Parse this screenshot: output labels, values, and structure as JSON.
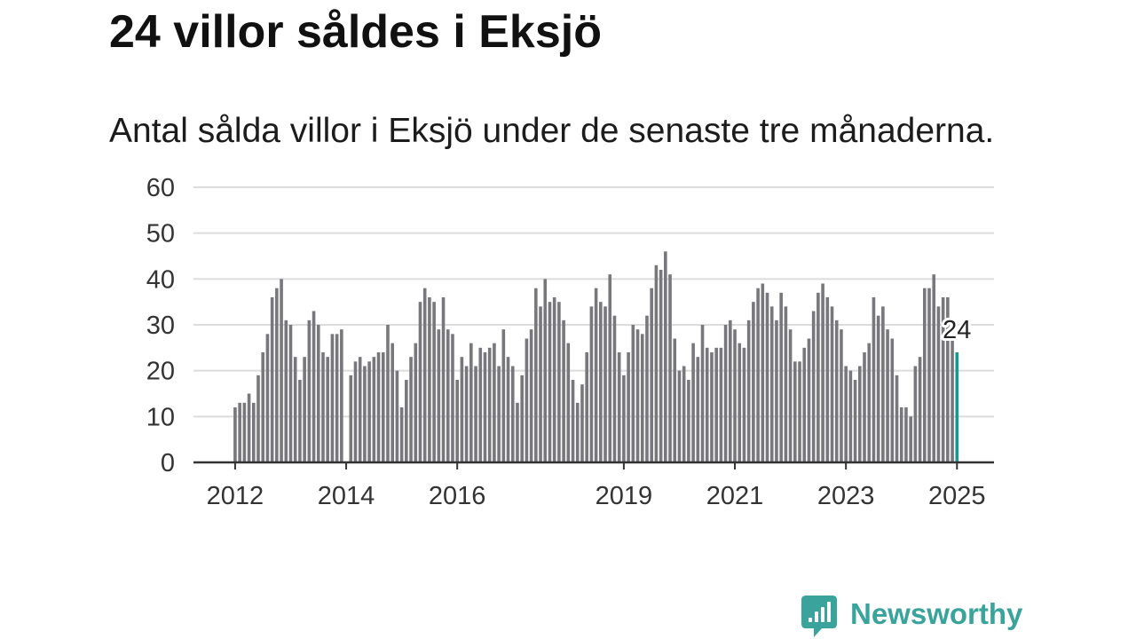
{
  "chart_data": {
    "type": "bar",
    "title": "24 villor såldes i Eksjö",
    "subtitle": "Antal sålda villor i Eksjö under de senaste tre månaderna.",
    "x": [
      "2012-01",
      "2012-02",
      "2012-03",
      "2012-04",
      "2012-05",
      "2012-06",
      "2012-07",
      "2012-08",
      "2012-09",
      "2012-10",
      "2012-11",
      "2012-12",
      "2013-01",
      "2013-02",
      "2013-03",
      "2013-04",
      "2013-05",
      "2013-06",
      "2013-07",
      "2013-08",
      "2013-09",
      "2013-10",
      "2013-11",
      "2013-12",
      "2014-01",
      "2014-02",
      "2014-03",
      "2014-04",
      "2014-05",
      "2014-06",
      "2014-07",
      "2014-08",
      "2014-09",
      "2014-10",
      "2014-11",
      "2014-12",
      "2015-01",
      "2015-02",
      "2015-03",
      "2015-04",
      "2015-05",
      "2015-06",
      "2015-07",
      "2015-08",
      "2015-09",
      "2015-10",
      "2015-11",
      "2015-12",
      "2016-01",
      "2016-02",
      "2016-03",
      "2016-04",
      "2016-05",
      "2016-06",
      "2016-07",
      "2016-08",
      "2016-09",
      "2016-10",
      "2016-11",
      "2016-12",
      "2017-01",
      "2017-02",
      "2017-03",
      "2017-04",
      "2017-05",
      "2017-06",
      "2017-07",
      "2017-08",
      "2017-09",
      "2017-10",
      "2017-11",
      "2017-12",
      "2018-01",
      "2018-02",
      "2018-03",
      "2018-04",
      "2018-05",
      "2018-06",
      "2018-07",
      "2018-08",
      "2018-09",
      "2018-10",
      "2018-11",
      "2018-12",
      "2019-01",
      "2019-02",
      "2019-03",
      "2019-04",
      "2019-05",
      "2019-06",
      "2019-07",
      "2019-08",
      "2019-09",
      "2019-10",
      "2019-11",
      "2019-12",
      "2020-01",
      "2020-02",
      "2020-03",
      "2020-04",
      "2020-05",
      "2020-06",
      "2020-07",
      "2020-08",
      "2020-09",
      "2020-10",
      "2020-11",
      "2020-12",
      "2021-01",
      "2021-02",
      "2021-03",
      "2021-04",
      "2021-05",
      "2021-06",
      "2021-07",
      "2021-08",
      "2021-09",
      "2021-10",
      "2021-11",
      "2021-12",
      "2022-01",
      "2022-02",
      "2022-03",
      "2022-04",
      "2022-05",
      "2022-06",
      "2022-07",
      "2022-08",
      "2022-09",
      "2022-10",
      "2022-11",
      "2022-12",
      "2023-01",
      "2023-02",
      "2023-03",
      "2023-04",
      "2023-05",
      "2023-06",
      "2023-07",
      "2023-08",
      "2023-09",
      "2023-10",
      "2023-11",
      "2023-12",
      "2024-01",
      "2024-02",
      "2024-03",
      "2024-04",
      "2024-05",
      "2024-06",
      "2024-07",
      "2024-08",
      "2024-09",
      "2024-10",
      "2024-11",
      "2024-12",
      "2025-01"
    ],
    "series": [
      {
        "values": [
          12,
          13,
          13,
          15,
          13,
          19,
          24,
          28,
          36,
          38,
          40,
          31,
          30,
          23,
          18,
          23,
          31,
          33,
          30,
          24,
          23,
          28,
          28,
          29,
          null,
          19,
          22,
          23,
          21,
          22,
          23,
          24,
          24,
          30,
          26,
          20,
          12,
          18,
          23,
          26,
          35,
          38,
          36,
          35,
          29,
          36,
          29,
          28,
          18,
          23,
          21,
          26,
          21,
          25,
          24,
          25,
          26,
          21,
          29,
          23,
          21,
          13,
          19,
          27,
          29,
          38,
          34,
          40,
          35,
          36,
          35,
          31,
          26,
          18,
          13,
          17,
          24,
          34,
          38,
          35,
          34,
          41,
          32,
          24,
          19,
          24,
          30,
          29,
          28,
          32,
          38,
          43,
          42,
          46,
          41,
          27,
          20,
          21,
          18,
          26,
          23,
          30,
          25,
          24,
          25,
          25,
          30,
          31,
          29,
          26,
          25,
          31,
          35,
          38,
          39,
          37,
          34,
          31,
          37,
          34,
          29,
          22,
          22,
          25,
          27,
          33,
          37,
          39,
          36,
          34,
          31,
          29,
          21,
          20,
          18,
          21,
          24,
          26,
          36,
          32,
          34,
          29,
          27,
          19,
          12,
          12,
          10,
          21,
          23,
          38,
          38,
          41,
          34,
          36,
          36,
          27,
          24
        ]
      }
    ],
    "xlim": [
      "2011-04",
      "2025-09"
    ],
    "ylim": [
      0,
      60
    ],
    "y_ticks": [
      0,
      10,
      20,
      30,
      40,
      50,
      60
    ],
    "x_ticks": [
      "2012",
      "2014",
      "2016",
      "2019",
      "2021",
      "2023",
      "2025"
    ],
    "grid": true,
    "legend": false,
    "highlight": {
      "x": "2025-01",
      "label": "24"
    },
    "colors": {
      "bar": "#78777c",
      "highlight": "#14998f",
      "grid": "#dcdcdc",
      "axis": "#333333"
    }
  },
  "branding": {
    "logo_text": "Newsworthy",
    "logo_icon": "newsworthy-chart-bubble-icon",
    "color": "#3aa39b"
  }
}
